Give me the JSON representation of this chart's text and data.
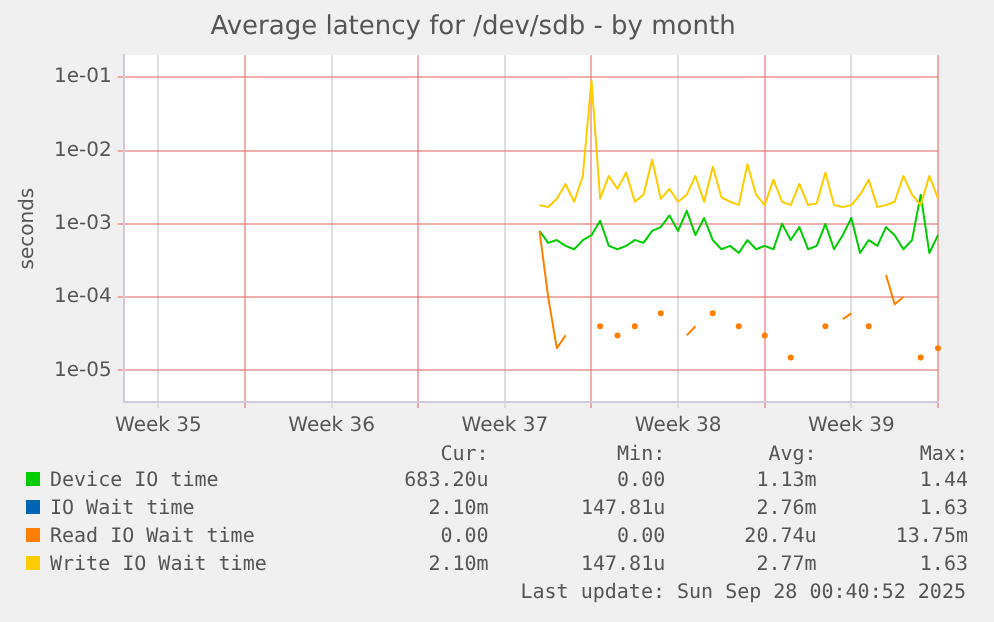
{
  "chart_data": {
    "type": "line",
    "title": "Average latency for /dev/sdb - by month",
    "ylabel": "seconds",
    "log": "y",
    "grid": true,
    "legend": "bottom",
    "line_style": "solid",
    "categories": [
      null,
      null,
      null,
      null,
      "Week 35",
      null,
      null,
      null,
      null,
      null,
      null,
      null,
      null,
      null,
      null,
      null,
      null,
      null,
      null,
      null,
      null,
      null,
      null,
      null,
      "Week 36",
      null,
      null,
      null,
      null,
      null,
      null,
      null,
      null,
      null,
      null,
      null,
      null,
      null,
      null,
      null,
      null,
      null,
      null,
      null,
      "Week 37",
      null,
      null,
      null,
      null,
      null,
      null,
      null,
      null,
      null,
      null,
      null,
      null,
      null,
      null,
      null,
      null,
      null,
      null,
      null,
      "Week 38",
      null,
      null,
      null,
      null,
      null,
      null,
      null,
      null,
      null,
      null,
      null,
      null,
      null,
      null,
      null,
      null,
      null,
      null,
      null,
      "Week 39",
      null,
      null,
      null,
      null,
      null,
      null,
      null,
      null,
      null,
      null
    ],
    "ylim": [
      3.7e-06,
      0.2
    ],
    "yticks": [
      {
        "value": 1e-05,
        "label": "1e-05"
      },
      {
        "value": 0.0001,
        "label": "1e-04"
      },
      {
        "value": 0.001,
        "label": "1e-03"
      },
      {
        "value": 0.01,
        "label": "1e-02"
      },
      {
        "value": 0.1,
        "label": "1e-01"
      }
    ],
    "series": [
      {
        "name": "Device IO time",
        "color": "#00cc00",
        "values": [
          null,
          null,
          null,
          null,
          null,
          null,
          null,
          null,
          null,
          null,
          null,
          null,
          null,
          null,
          null,
          null,
          null,
          null,
          null,
          null,
          null,
          null,
          null,
          null,
          null,
          null,
          null,
          null,
          null,
          null,
          null,
          null,
          null,
          null,
          null,
          null,
          null,
          null,
          null,
          null,
          null,
          null,
          null,
          null,
          null,
          null,
          null,
          null,
          0.0008,
          0.00055,
          0.0006,
          0.0005,
          0.00045,
          0.0006,
          0.0007,
          0.0011,
          0.0005,
          0.00045,
          0.0005,
          0.0006,
          0.00055,
          0.0008,
          0.0009,
          0.0013,
          0.0008,
          0.0015,
          0.0007,
          0.0012,
          0.0006,
          0.00045,
          0.0005,
          0.0004,
          0.0006,
          0.00045,
          0.0005,
          0.00045,
          0.001,
          0.0006,
          0.0009,
          0.00045,
          0.0005,
          0.001,
          0.00045,
          0.0007,
          0.0012,
          0.0004,
          0.0006,
          0.0005,
          0.0009,
          0.0007,
          0.00045,
          0.0006,
          0.0025,
          0.0004,
          0.0007
        ]
      },
      {
        "name": "IO Wait time",
        "color": "#0066b3",
        "values": [
          null,
          null,
          null,
          null,
          null,
          null,
          null,
          null,
          null,
          null,
          null,
          null,
          null,
          null,
          null,
          null,
          null,
          null,
          null,
          null,
          null,
          null,
          null,
          null,
          null,
          null,
          null,
          null,
          null,
          null,
          null,
          null,
          null,
          null,
          null,
          null,
          null,
          null,
          null,
          null,
          null,
          null,
          null,
          null,
          null,
          null,
          null,
          null,
          null,
          null,
          null,
          null,
          null,
          null,
          null,
          null,
          null,
          null,
          null,
          null,
          null,
          null,
          null,
          null,
          null,
          null,
          null,
          null,
          null,
          null,
          null,
          null,
          null,
          null,
          null,
          null,
          null,
          null,
          null,
          null,
          null,
          null,
          null,
          null,
          null,
          null,
          null,
          null,
          null,
          null,
          null,
          null,
          null,
          null,
          null
        ]
      },
      {
        "name": "Read IO Wait time",
        "color": "#ff8000",
        "values": [
          null,
          null,
          null,
          null,
          null,
          null,
          null,
          null,
          null,
          null,
          null,
          null,
          null,
          null,
          null,
          null,
          null,
          null,
          null,
          null,
          null,
          null,
          null,
          null,
          null,
          null,
          null,
          null,
          null,
          null,
          null,
          null,
          null,
          null,
          null,
          null,
          null,
          null,
          null,
          null,
          null,
          null,
          null,
          null,
          null,
          null,
          null,
          null,
          0.0008,
          0.0001,
          2e-05,
          3e-05,
          null,
          null,
          null,
          4e-05,
          null,
          3e-05,
          null,
          4e-05,
          null,
          null,
          6e-05,
          null,
          null,
          3e-05,
          4e-05,
          null,
          6e-05,
          null,
          null,
          4e-05,
          null,
          null,
          3e-05,
          null,
          null,
          1.5e-05,
          null,
          null,
          null,
          4e-05,
          null,
          5e-05,
          6e-05,
          null,
          4e-05,
          null,
          0.0002,
          8e-05,
          0.0001,
          null,
          1.5e-05,
          null,
          2e-05
        ]
      },
      {
        "name": "Write IO Wait time",
        "color": "#ffcc00",
        "values": [
          null,
          null,
          null,
          null,
          null,
          null,
          null,
          null,
          null,
          null,
          null,
          null,
          null,
          null,
          null,
          null,
          null,
          null,
          null,
          null,
          null,
          null,
          null,
          null,
          null,
          null,
          null,
          null,
          null,
          null,
          null,
          null,
          null,
          null,
          null,
          null,
          null,
          null,
          null,
          null,
          null,
          null,
          null,
          null,
          null,
          null,
          null,
          null,
          0.0018,
          0.0017,
          0.0022,
          0.0035,
          0.002,
          0.0045,
          0.09,
          0.0022,
          0.0045,
          0.003,
          0.005,
          0.002,
          0.0025,
          0.0075,
          0.0022,
          0.003,
          0.002,
          0.0025,
          0.0045,
          0.002,
          0.006,
          0.0023,
          0.002,
          0.0018,
          0.0065,
          0.0025,
          0.0018,
          0.004,
          0.002,
          0.0018,
          0.0035,
          0.0018,
          0.0019,
          0.005,
          0.0018,
          0.0017,
          0.0018,
          0.0025,
          0.004,
          0.0017,
          0.0018,
          0.002,
          0.0045,
          0.0025,
          0.0018,
          0.0045,
          0.0022
        ]
      }
    ],
    "annotations": [
      "Cur:",
      "Min:",
      "Avg:",
      "Max:",
      "683.20u",
      "0.00",
      "1.13m",
      "1.44",
      "2.10m",
      "147.81u",
      "2.76m",
      "1.63",
      "0.00",
      "0.00",
      "20.74u",
      "13.75m",
      "2.10m",
      "147.81u",
      "2.77m",
      "1.63",
      "Last update: Sun Sep 28 00:40:52 2025"
    ]
  }
}
